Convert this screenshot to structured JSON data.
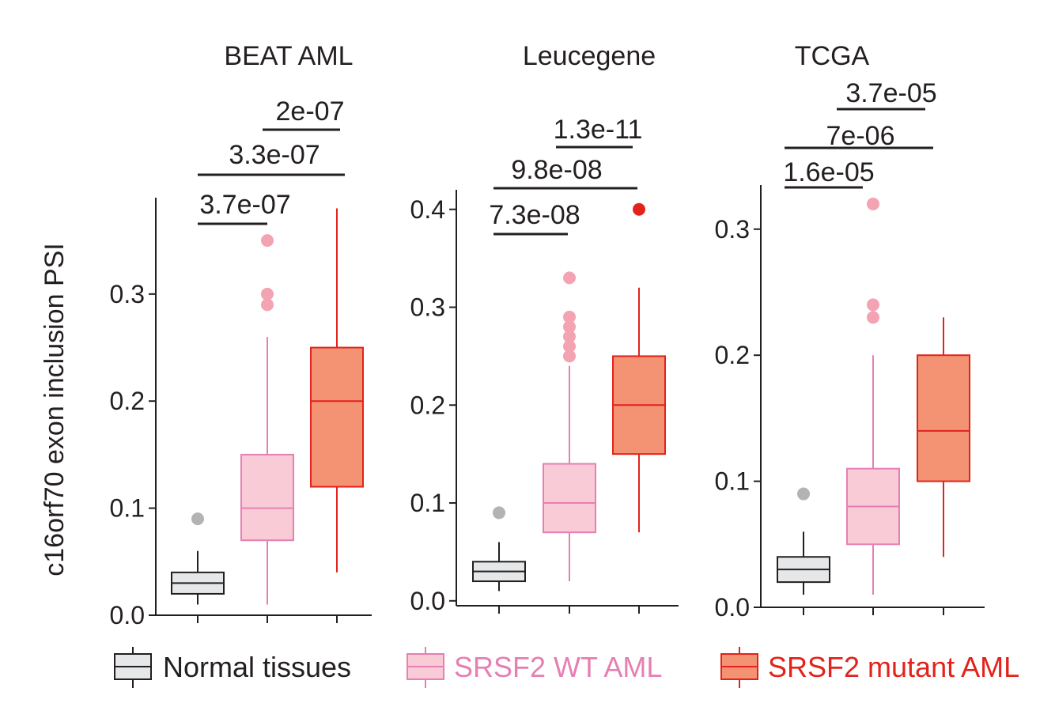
{
  "chart_data": {
    "type": "box",
    "ylabel": "c16orf70 exon inclusion PSI",
    "groups": [
      "Normal tissues",
      "SRSF2 WT AML",
      "SRSF2 mutant AML"
    ],
    "colors": {
      "Normal tissues": {
        "fill": "#e6e7e8",
        "stroke": "#231f20",
        "outlier": "#b3b3b3"
      },
      "SRSF2 WT AML": {
        "fill": "#f9cbd7",
        "stroke": "#e67fb3",
        "outlier": "#f4a3b3"
      },
      "SRSF2 mutant AML": {
        "fill": "#f39374",
        "stroke": "#e3231b",
        "outlier": "#e3231b"
      }
    },
    "legend": [
      {
        "label": "Normal tissues",
        "color": "#231f20"
      },
      {
        "label": "SRSF2 WT AML",
        "color": "#e67fb3"
      },
      {
        "label": "SRSF2 mutant AML",
        "color": "#e3231b"
      }
    ],
    "panels": [
      {
        "title": "BEAT AML",
        "ylim": [
          0.0,
          0.39
        ],
        "ticks": [
          0.0,
          0.1,
          0.2,
          0.3
        ],
        "tick_labels": [
          "0.0",
          "0.1",
          "0.2",
          "0.3"
        ],
        "boxes": [
          {
            "group": "Normal tissues",
            "min": 0.01,
            "q1": 0.02,
            "median": 0.03,
            "q3": 0.04,
            "max": 0.06,
            "outliers": [
              0.09
            ]
          },
          {
            "group": "SRSF2 WT AML",
            "min": 0.01,
            "q1": 0.07,
            "median": 0.1,
            "q3": 0.15,
            "max": 0.26,
            "outliers": [
              0.29,
              0.3,
              0.35
            ]
          },
          {
            "group": "SRSF2 mutant AML",
            "min": 0.04,
            "q1": 0.12,
            "median": 0.2,
            "q3": 0.25,
            "max": 0.38,
            "outliers": []
          }
        ],
        "comparisons": [
          {
            "from": 0,
            "to": 1,
            "p": "3.7e-07"
          },
          {
            "from": 0,
            "to": 2,
            "p": "3.3e-07"
          },
          {
            "from": 1,
            "to": 2,
            "p": "2e-07"
          }
        ]
      },
      {
        "title": "Leucegene",
        "ylim": [
          -0.005,
          0.42
        ],
        "ticks": [
          0.0,
          0.1,
          0.2,
          0.3,
          0.4
        ],
        "tick_labels": [
          "0.0",
          "0.1",
          "0.2",
          "0.3",
          "0.4"
        ],
        "boxes": [
          {
            "group": "Normal tissues",
            "min": 0.01,
            "q1": 0.02,
            "median": 0.03,
            "q3": 0.04,
            "max": 0.06,
            "outliers": [
              0.09
            ]
          },
          {
            "group": "SRSF2 WT AML",
            "min": 0.02,
            "q1": 0.07,
            "median": 0.1,
            "q3": 0.14,
            "max": 0.24,
            "outliers": [
              0.25,
              0.26,
              0.27,
              0.28,
              0.29,
              0.33
            ]
          },
          {
            "group": "SRSF2 mutant AML",
            "min": 0.07,
            "q1": 0.15,
            "median": 0.2,
            "q3": 0.25,
            "max": 0.32,
            "outliers": [
              0.4
            ]
          }
        ],
        "comparisons": [
          {
            "from": 0,
            "to": 1,
            "p": "7.3e-08"
          },
          {
            "from": 0,
            "to": 2,
            "p": "9.8e-08"
          },
          {
            "from": 1,
            "to": 2,
            "p": "1.3e-11"
          }
        ]
      },
      {
        "title": "TCGA",
        "ylim": [
          0.0,
          0.335
        ],
        "ticks": [
          0.0,
          0.1,
          0.2,
          0.3
        ],
        "tick_labels": [
          "0.0",
          "0.1",
          "0.2",
          "0.3"
        ],
        "boxes": [
          {
            "group": "Normal tissues",
            "min": 0.01,
            "q1": 0.02,
            "median": 0.03,
            "q3": 0.04,
            "max": 0.06,
            "outliers": [
              0.09
            ]
          },
          {
            "group": "SRSF2 WT AML",
            "min": 0.01,
            "q1": 0.05,
            "median": 0.08,
            "q3": 0.11,
            "max": 0.2,
            "outliers": [
              0.23,
              0.24,
              0.32
            ]
          },
          {
            "group": "SRSF2 mutant AML",
            "min": 0.04,
            "q1": 0.1,
            "median": 0.14,
            "q3": 0.2,
            "max": 0.23,
            "outliers": []
          }
        ],
        "comparisons": [
          {
            "from": 0,
            "to": 1,
            "p": "1.6e-05"
          },
          {
            "from": 0,
            "to": 2,
            "p": "7e-06"
          },
          {
            "from": 1,
            "to": 2,
            "p": "3.7e-05"
          }
        ]
      }
    ]
  }
}
